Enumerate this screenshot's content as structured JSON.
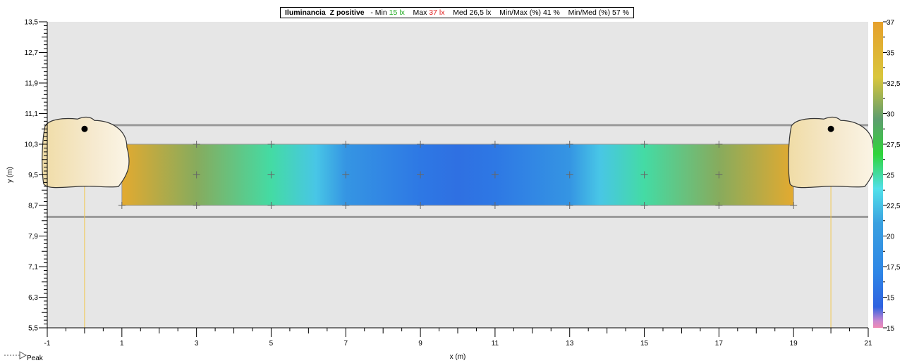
{
  "stats": {
    "title": "Iluminancia",
    "surface": "Z positive",
    "min_label": "- Min",
    "min_value": "15 lx",
    "max_label": "Max",
    "max_value": "37 lx",
    "med_label": "Med",
    "med_value": "26,5 lx",
    "minmax_label": "Min/Max (%)",
    "minmax_value": "41 %",
    "minmed_label": "Min/Med (%)",
    "minmed_value": "57 %"
  },
  "peak_label": "Peak",
  "colors": {
    "plot_bg": "#e6e6e6",
    "grid_point": "#666666",
    "luminaire_fill": "#f3e4b8",
    "road_line": "#9a9a9a"
  },
  "chart_data": {
    "type": "heatmap",
    "xlabel": "x (m)",
    "ylabel": "y (m)",
    "xlim": [
      -1,
      21
    ],
    "ylim": [
      5.5,
      13.5
    ],
    "x_ticks": [
      "-1",
      "1",
      "3",
      "5",
      "7",
      "9",
      "11",
      "13",
      "15",
      "17",
      "19",
      "21"
    ],
    "y_ticks": [
      "5,5",
      "6,3",
      "7,1",
      "7,9",
      "8,7",
      "9,5",
      "10,3",
      "11,1",
      "11,9",
      "12,7",
      "13,5"
    ],
    "calculation_area": {
      "x": [
        1,
        19
      ],
      "y": [
        8.7,
        10.3
      ]
    },
    "grid_points": {
      "x": [
        1,
        3,
        5,
        7,
        9,
        11,
        13,
        15,
        17,
        19
      ],
      "y": [
        8.7,
        9.5,
        10.3
      ]
    },
    "illuminance_profile": [
      {
        "x": 1,
        "value": 36
      },
      {
        "x": 3,
        "value": 31
      },
      {
        "x": 5,
        "value": 26
      },
      {
        "x": 6.2,
        "value": 24
      },
      {
        "x": 7,
        "value": 21
      },
      {
        "x": 9,
        "value": 18
      },
      {
        "x": 10,
        "value": 17.5
      },
      {
        "x": 11,
        "value": 18
      },
      {
        "x": 13,
        "value": 21
      },
      {
        "x": 13.8,
        "value": 24
      },
      {
        "x": 15,
        "value": 26
      },
      {
        "x": 17,
        "value": 31
      },
      {
        "x": 19,
        "value": 36
      }
    ],
    "road_lines_y": [
      10.8,
      8.4
    ],
    "luminaires": [
      {
        "x": 0,
        "y": 10.7
      },
      {
        "x": 20,
        "y": 10.7
      }
    ],
    "colorbar": {
      "min": 15,
      "max": 37,
      "labels": [
        "37",
        "35",
        "32,5",
        "30",
        "27,5",
        "25",
        "22,5",
        "20",
        "17,5",
        "15",
        "15"
      ],
      "stops": [
        {
          "value": 37,
          "color": "#e6a02c"
        },
        {
          "value": 33,
          "color": "#d9c63c"
        },
        {
          "value": 30,
          "color": "#5e9d6e"
        },
        {
          "value": 27.5,
          "color": "#2fd43a"
        },
        {
          "value": 25,
          "color": "#52e0ea"
        },
        {
          "value": 22.5,
          "color": "#3aa0e0"
        },
        {
          "value": 19,
          "color": "#2e86e6"
        },
        {
          "value": 16.5,
          "color": "#2f62e0"
        },
        {
          "value": 15.5,
          "color": "#c987d0"
        },
        {
          "value": 15,
          "color": "#f08ab4"
        }
      ]
    }
  }
}
